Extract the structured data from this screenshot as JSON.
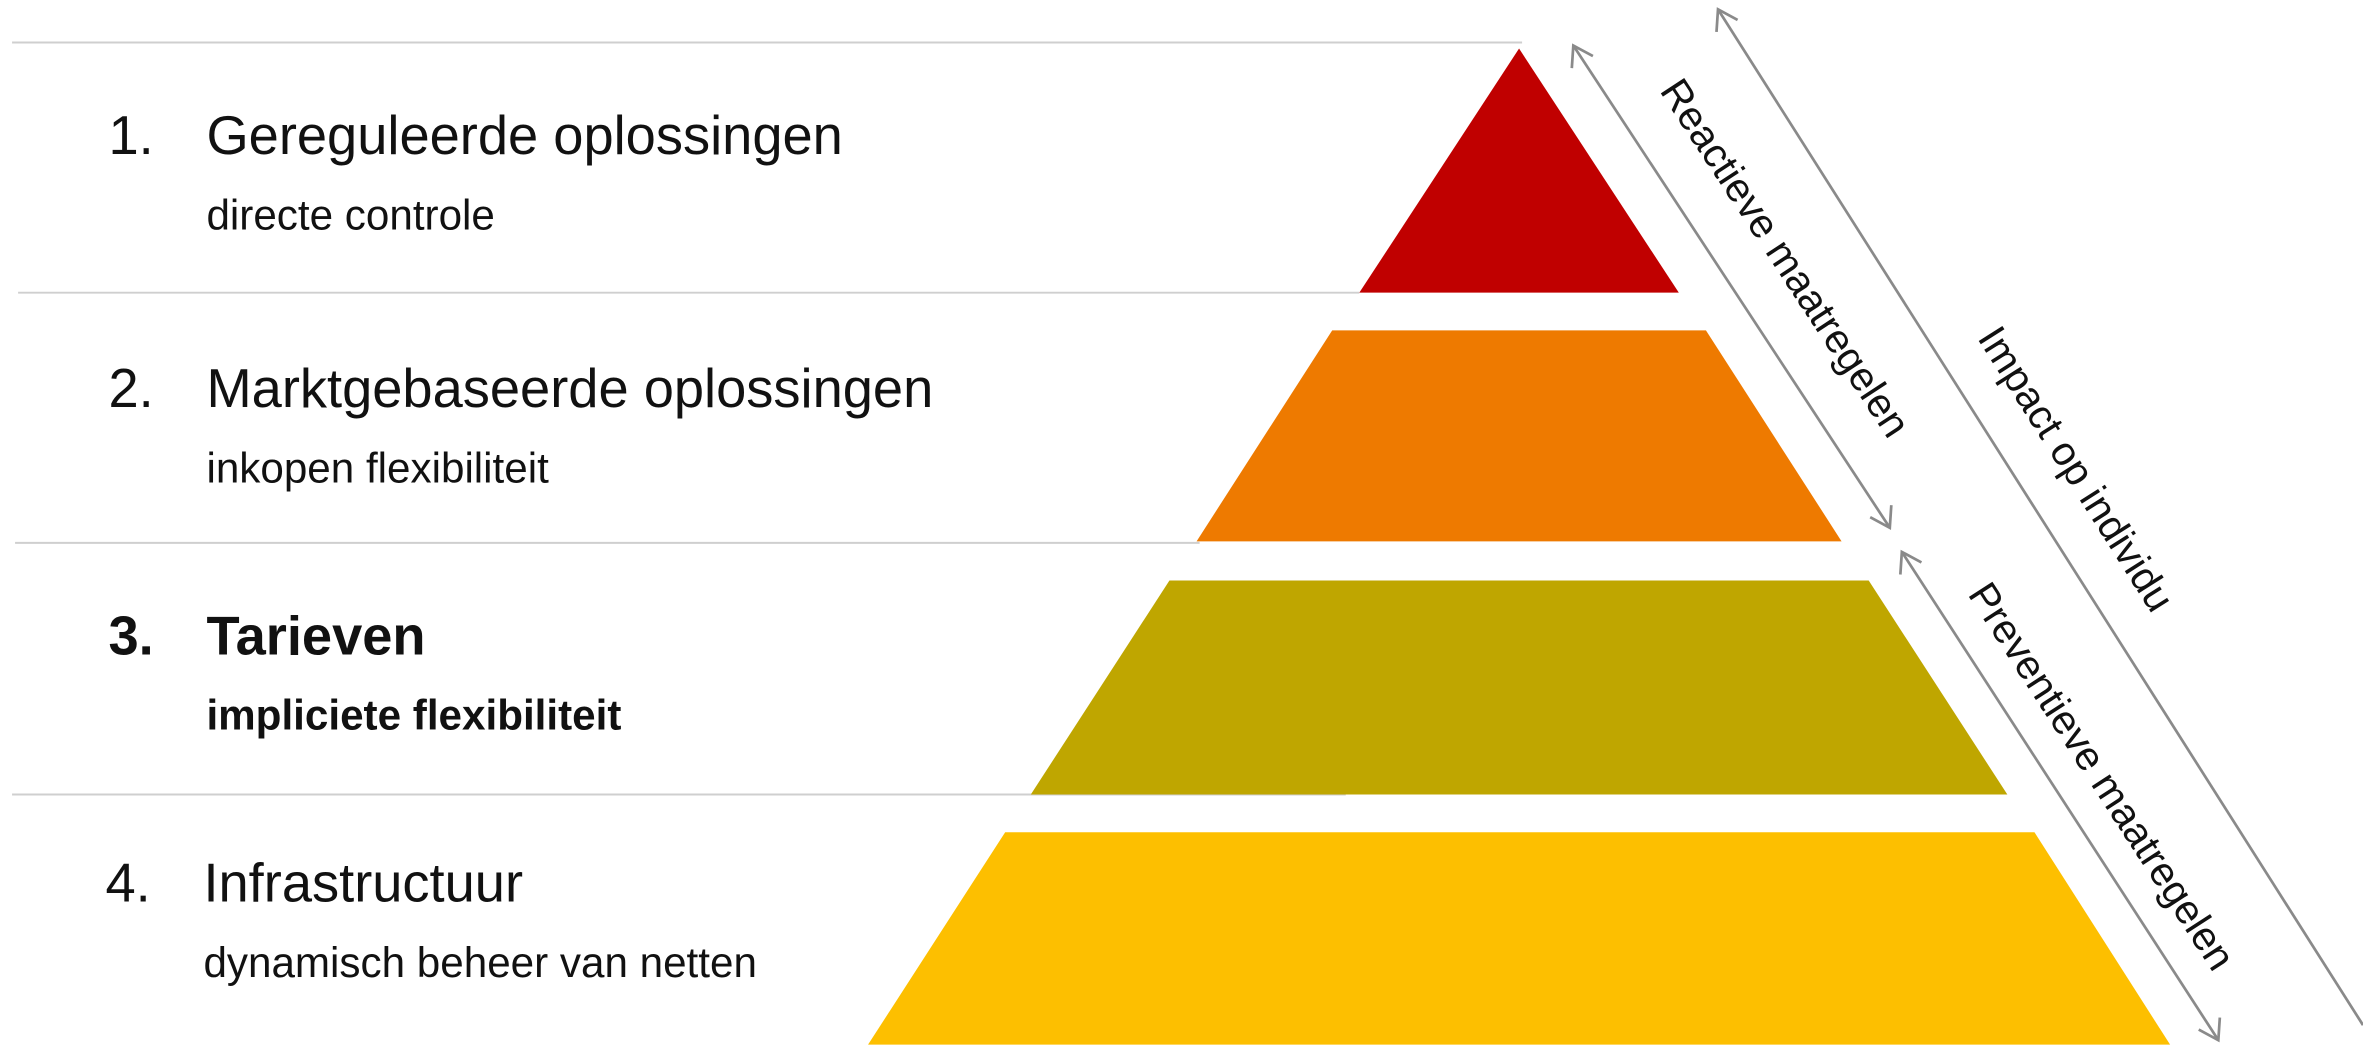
{
  "levels": [
    {
      "number": "1.",
      "title": "Gereguleerde oplossingen",
      "subtitle": "directe controle"
    },
    {
      "number": "2.",
      "title": "Marktgebaseerde oplossingen",
      "subtitle": "inkopen flexibiliteit"
    },
    {
      "number": "3.",
      "title": "Tarieven",
      "subtitle": "impliciete flexibiliteit"
    },
    {
      "number": "4.",
      "title": "Infrastructuur",
      "subtitle": "dynamisch beheer van netten"
    }
  ],
  "arrows": {
    "reactive": "Reactieve maatregelen",
    "preventive": "Preventieve maatregelen",
    "impact": "Impact op individu"
  }
}
